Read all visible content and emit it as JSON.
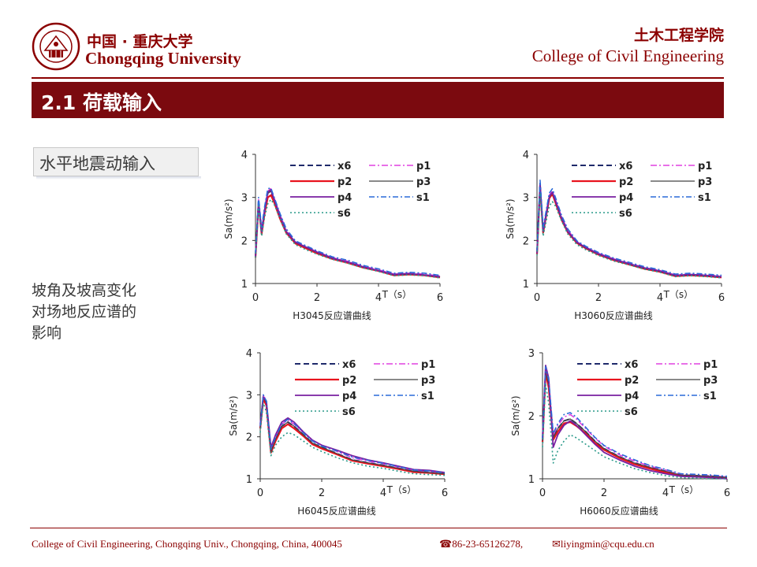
{
  "header": {
    "university_cn": "中国 · 重庆大学",
    "university_en": "Chongqing University",
    "college_cn": "土木工程学院",
    "college_en": "College of Civil Engineering"
  },
  "slide": {
    "title": "2.1 荷载输入",
    "tag": "水平地震动输入",
    "description": [
      "坡角及坡高变化",
      "对场地反应谱的",
      "影响"
    ]
  },
  "footer": {
    "address": "College of Civil Engineering, Chongqing Univ., Chongqing, China, 400045",
    "phone": "86-23-65126278,",
    "email": "liyingmin@cqu.edu.cn"
  },
  "colors": {
    "brand": "#8b0000",
    "title_bar": "#7b0a0f",
    "x6": "#1f2a6b",
    "p1": "#e040e0",
    "p2": "#e8141e",
    "p3": "#444444",
    "p4": "#7a1fa0",
    "s1": "#2a6ad8",
    "s6": "#2a9a8a"
  },
  "legend": [
    {
      "key": "x6",
      "label": "x6"
    },
    {
      "key": "p1",
      "label": "p1"
    },
    {
      "key": "p2",
      "label": "p2"
    },
    {
      "key": "p3",
      "label": "p3"
    },
    {
      "key": "p4",
      "label": "p4"
    },
    {
      "key": "s1",
      "label": "s1"
    },
    {
      "key": "s6",
      "label": "s6"
    }
  ],
  "chart_data": [
    {
      "type": "line",
      "title": "H3045反应谱曲线",
      "xlabel": "T（s）",
      "ylabel": "Sa(m/s²)",
      "xlim": [
        0,
        6
      ],
      "ylim": [
        1,
        4
      ],
      "xticks": [
        "0",
        "2",
        "4",
        "6"
      ],
      "yticks": [
        "1",
        "2",
        "3",
        "4"
      ],
      "x": [
        0,
        0.1,
        0.2,
        0.3,
        0.4,
        0.5,
        0.6,
        0.8,
        1.0,
        1.3,
        1.6,
        2.0,
        2.5,
        3.0,
        3.5,
        4.0,
        4.5,
        5.0,
        5.5,
        6.0
      ],
      "series": [
        {
          "name": "x6",
          "values": [
            1.65,
            2.9,
            2.2,
            2.7,
            3.1,
            3.15,
            2.95,
            2.55,
            2.2,
            1.95,
            1.85,
            1.72,
            1.58,
            1.5,
            1.38,
            1.3,
            1.2,
            1.22,
            1.2,
            1.15
          ]
        },
        {
          "name": "p1",
          "values": [
            1.65,
            2.95,
            2.25,
            2.75,
            3.15,
            3.2,
            3.0,
            2.6,
            2.25,
            1.97,
            1.87,
            1.74,
            1.6,
            1.52,
            1.4,
            1.32,
            1.22,
            1.24,
            1.22,
            1.17
          ]
        },
        {
          "name": "p2",
          "values": [
            1.6,
            2.85,
            2.15,
            2.65,
            3.0,
            3.05,
            2.9,
            2.5,
            2.18,
            1.93,
            1.83,
            1.7,
            1.57,
            1.48,
            1.37,
            1.29,
            1.19,
            1.21,
            1.19,
            1.14
          ]
        },
        {
          "name": "p3",
          "values": [
            1.65,
            2.9,
            2.2,
            2.7,
            3.1,
            3.15,
            2.95,
            2.55,
            2.2,
            1.95,
            1.85,
            1.72,
            1.58,
            1.5,
            1.38,
            1.3,
            1.2,
            1.22,
            1.2,
            1.15
          ]
        },
        {
          "name": "p4",
          "values": [
            1.62,
            2.88,
            2.2,
            2.72,
            3.12,
            3.18,
            2.97,
            2.56,
            2.21,
            1.96,
            1.86,
            1.73,
            1.59,
            1.5,
            1.39,
            1.3,
            1.21,
            1.23,
            1.2,
            1.16
          ]
        },
        {
          "name": "s1",
          "values": [
            1.7,
            3.0,
            2.3,
            2.8,
            3.2,
            3.22,
            3.02,
            2.62,
            2.27,
            1.99,
            1.89,
            1.76,
            1.62,
            1.54,
            1.42,
            1.34,
            1.24,
            1.26,
            1.24,
            1.19
          ]
        },
        {
          "name": "s6",
          "values": [
            1.6,
            2.8,
            2.1,
            2.55,
            2.85,
            2.95,
            2.85,
            2.5,
            2.15,
            1.9,
            1.8,
            1.68,
            1.56,
            1.47,
            1.36,
            1.28,
            1.18,
            1.2,
            1.18,
            1.13
          ]
        }
      ]
    },
    {
      "type": "line",
      "title": "H3060反应谱曲线",
      "xlabel": "T（s）",
      "ylabel": "Sa(m/s²)",
      "xlim": [
        0,
        6
      ],
      "ylim": [
        1,
        4
      ],
      "xticks": [
        "0",
        "2",
        "4",
        "6"
      ],
      "yticks": [
        "1",
        "2",
        "3",
        "4"
      ],
      "x": [
        0,
        0.1,
        0.2,
        0.3,
        0.4,
        0.5,
        0.6,
        0.8,
        1.0,
        1.3,
        1.6,
        2.0,
        2.5,
        3.0,
        3.5,
        4.0,
        4.5,
        5.0,
        5.5,
        6.0
      ],
      "series": [
        {
          "name": "x6",
          "values": [
            1.7,
            3.3,
            2.2,
            2.6,
            3.0,
            3.1,
            2.9,
            2.5,
            2.2,
            1.95,
            1.82,
            1.68,
            1.55,
            1.45,
            1.35,
            1.28,
            1.18,
            1.2,
            1.18,
            1.15
          ]
        },
        {
          "name": "p1",
          "values": [
            1.72,
            3.35,
            2.25,
            2.65,
            3.05,
            3.15,
            2.95,
            2.55,
            2.24,
            1.97,
            1.84,
            1.7,
            1.57,
            1.47,
            1.37,
            1.3,
            1.2,
            1.22,
            1.2,
            1.17
          ]
        },
        {
          "name": "p2",
          "values": [
            1.68,
            3.25,
            2.18,
            2.58,
            2.98,
            3.08,
            2.88,
            2.48,
            2.19,
            1.94,
            1.81,
            1.67,
            1.54,
            1.44,
            1.34,
            1.27,
            1.17,
            1.19,
            1.17,
            1.14
          ]
        },
        {
          "name": "p3",
          "values": [
            1.7,
            3.3,
            2.2,
            2.6,
            3.0,
            3.1,
            2.9,
            2.5,
            2.2,
            1.95,
            1.82,
            1.68,
            1.55,
            1.45,
            1.35,
            1.28,
            1.18,
            1.2,
            1.18,
            1.15
          ]
        },
        {
          "name": "p4",
          "values": [
            1.7,
            3.32,
            2.22,
            2.62,
            3.02,
            3.12,
            2.92,
            2.52,
            2.21,
            1.96,
            1.83,
            1.69,
            1.56,
            1.46,
            1.36,
            1.29,
            1.19,
            1.21,
            1.19,
            1.16
          ]
        },
        {
          "name": "s1",
          "values": [
            1.75,
            3.4,
            2.3,
            2.7,
            3.1,
            3.2,
            3.0,
            2.58,
            2.27,
            1.99,
            1.86,
            1.72,
            1.59,
            1.49,
            1.39,
            1.32,
            1.22,
            1.24,
            1.22,
            1.19
          ]
        },
        {
          "name": "s6",
          "values": [
            1.65,
            3.1,
            2.1,
            2.45,
            2.8,
            2.9,
            2.8,
            2.45,
            2.15,
            1.9,
            1.78,
            1.65,
            1.52,
            1.43,
            1.33,
            1.26,
            1.16,
            1.18,
            1.16,
            1.13
          ]
        }
      ]
    },
    {
      "type": "line",
      "title": "H6045反应谱曲线",
      "xlabel": "T（s）",
      "ylabel": "Sa(m/s²)",
      "xlim": [
        0,
        6
      ],
      "ylim": [
        1,
        4
      ],
      "xticks": [
        "0",
        "2",
        "4",
        "6"
      ],
      "yticks": [
        "1",
        "2",
        "3",
        "4"
      ],
      "x": [
        0,
        0.1,
        0.2,
        0.35,
        0.5,
        0.7,
        0.9,
        1.1,
        1.4,
        1.7,
        2.0,
        2.5,
        3.0,
        3.5,
        4.0,
        4.5,
        5.0,
        5.5,
        6.0
      ],
      "series": [
        {
          "name": "x6",
          "values": [
            2.2,
            2.95,
            2.8,
            1.65,
            1.95,
            2.25,
            2.35,
            2.25,
            2.05,
            1.85,
            1.75,
            1.6,
            1.45,
            1.38,
            1.32,
            1.25,
            1.18,
            1.15,
            1.12
          ]
        },
        {
          "name": "p1",
          "values": [
            2.25,
            3.0,
            2.85,
            1.7,
            2.0,
            2.3,
            2.4,
            2.3,
            2.1,
            1.9,
            1.8,
            1.65,
            1.5,
            1.42,
            1.36,
            1.28,
            1.2,
            1.18,
            1.14
          ]
        },
        {
          "name": "p2",
          "values": [
            2.2,
            2.9,
            2.75,
            1.62,
            1.9,
            2.2,
            2.3,
            2.2,
            2.02,
            1.82,
            1.72,
            1.58,
            1.43,
            1.36,
            1.3,
            1.23,
            1.16,
            1.14,
            1.11
          ]
        },
        {
          "name": "p3",
          "values": [
            2.2,
            2.95,
            2.8,
            1.65,
            1.95,
            2.25,
            2.35,
            2.25,
            2.05,
            1.85,
            1.75,
            1.6,
            1.45,
            1.38,
            1.32,
            1.25,
            1.18,
            1.15,
            1.12
          ]
        },
        {
          "name": "p4",
          "values": [
            2.3,
            2.95,
            2.85,
            1.75,
            2.05,
            2.35,
            2.45,
            2.35,
            2.12,
            1.92,
            1.8,
            1.68,
            1.55,
            1.45,
            1.38,
            1.3,
            1.22,
            1.2,
            1.15
          ]
        },
        {
          "name": "s1",
          "values": [
            2.25,
            3.0,
            2.85,
            1.7,
            2.0,
            2.3,
            2.42,
            2.32,
            2.1,
            1.9,
            1.78,
            1.66,
            1.52,
            1.44,
            1.37,
            1.29,
            1.21,
            1.19,
            1.14
          ]
        },
        {
          "name": "s6",
          "values": [
            2.1,
            2.8,
            2.6,
            1.55,
            1.8,
            2.0,
            2.1,
            2.05,
            1.9,
            1.75,
            1.65,
            1.5,
            1.38,
            1.3,
            1.25,
            1.18,
            1.12,
            1.1,
            1.08
          ]
        }
      ]
    },
    {
      "type": "line",
      "title": "H6060反应谱曲线",
      "xlabel": "T（s）",
      "ylabel": "Sa(m/s²)",
      "xlim": [
        0,
        6
      ],
      "ylim": [
        1,
        3
      ],
      "xticks": [
        "0",
        "2",
        "4",
        "6"
      ],
      "yticks": [
        "1",
        "2",
        "3"
      ],
      "x": [
        0,
        0.1,
        0.2,
        0.35,
        0.5,
        0.7,
        0.9,
        1.1,
        1.4,
        1.7,
        2.0,
        2.5,
        3.0,
        3.5,
        4.0,
        4.5,
        5.0,
        5.5,
        6.0
      ],
      "series": [
        {
          "name": "x6",
          "values": [
            1.6,
            2.7,
            2.5,
            1.65,
            1.8,
            1.92,
            1.95,
            1.88,
            1.75,
            1.6,
            1.48,
            1.35,
            1.25,
            1.18,
            1.12,
            1.06,
            1.05,
            1.04,
            1.02
          ]
        },
        {
          "name": "p1",
          "values": [
            1.62,
            2.75,
            2.55,
            1.7,
            1.85,
            1.98,
            2.02,
            1.95,
            1.8,
            1.65,
            1.52,
            1.38,
            1.28,
            1.2,
            1.14,
            1.07,
            1.06,
            1.05,
            1.03
          ]
        },
        {
          "name": "p2",
          "values": [
            1.58,
            2.68,
            2.45,
            1.62,
            1.75,
            1.88,
            1.9,
            1.84,
            1.72,
            1.57,
            1.46,
            1.33,
            1.23,
            1.16,
            1.1,
            1.05,
            1.04,
            1.03,
            1.01
          ]
        },
        {
          "name": "p3",
          "values": [
            1.6,
            2.7,
            2.5,
            1.65,
            1.8,
            1.92,
            1.95,
            1.88,
            1.75,
            1.6,
            1.48,
            1.35,
            1.25,
            1.18,
            1.12,
            1.06,
            1.05,
            1.04,
            1.02
          ]
        },
        {
          "name": "p4",
          "values": [
            1.65,
            2.8,
            2.6,
            1.5,
            1.7,
            1.85,
            1.92,
            1.85,
            1.7,
            1.55,
            1.42,
            1.3,
            1.2,
            1.13,
            1.08,
            1.04,
            1.03,
            1.02,
            1.0
          ]
        },
        {
          "name": "s1",
          "values": [
            1.62,
            2.78,
            2.58,
            1.72,
            1.88,
            2.02,
            2.05,
            1.98,
            1.82,
            1.66,
            1.53,
            1.4,
            1.3,
            1.21,
            1.15,
            1.08,
            1.07,
            1.06,
            1.04
          ]
        },
        {
          "name": "s6",
          "values": [
            1.5,
            2.5,
            2.2,
            1.25,
            1.45,
            1.6,
            1.7,
            1.65,
            1.55,
            1.45,
            1.35,
            1.25,
            1.16,
            1.1,
            1.05,
            1.02,
            1.01,
            1.0,
            1.0
          ]
        }
      ]
    }
  ]
}
